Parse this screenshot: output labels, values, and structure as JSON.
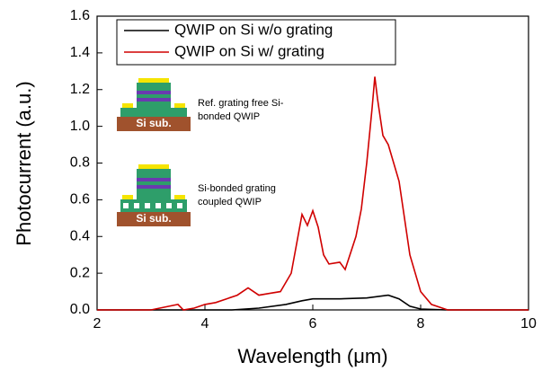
{
  "chart_data": {
    "type": "line",
    "x_label": "Wavelength (μm)",
    "y_label": "Photocurrent (a.u.)",
    "xlim": [
      2,
      10
    ],
    "xticks": [
      2,
      4,
      6,
      8,
      10
    ],
    "ylim": [
      0,
      1.6
    ],
    "yticks": [
      {
        "value": 0,
        "label": "0.0"
      },
      0.2,
      0.4,
      0.6,
      0.8,
      {
        "value": 1,
        "label": "1.0"
      },
      1.2,
      1.4,
      1.6
    ],
    "legend": "upper left",
    "series": [
      {
        "name": "QWIP on Si w/o grating",
        "color": "#000000",
        "x": [
          2,
          4.5,
          5.0,
          5.5,
          5.8,
          6.0,
          6.5,
          7.0,
          7.4,
          7.6,
          7.8,
          8.0,
          8.5,
          10
        ],
        "values": [
          0,
          0,
          0.01,
          0.03,
          0.05,
          0.06,
          0.06,
          0.065,
          0.08,
          0.06,
          0.02,
          0.005,
          0,
          0
        ]
      },
      {
        "name": "QWIP on Si w/ grating",
        "color": "#d00000",
        "x": [
          2,
          3.0,
          3.5,
          3.6,
          3.8,
          4.0,
          4.2,
          4.4,
          4.6,
          4.8,
          5.0,
          5.2,
          5.4,
          5.6,
          5.8,
          5.9,
          6.0,
          6.1,
          6.2,
          6.3,
          6.5,
          6.6,
          6.8,
          6.9,
          7.0,
          7.1,
          7.15,
          7.2,
          7.3,
          7.4,
          7.5,
          7.6,
          7.7,
          7.8,
          8.0,
          8.2,
          8.5,
          10
        ],
        "values": [
          0,
          0,
          0.03,
          0,
          0.01,
          0.03,
          0.04,
          0.06,
          0.08,
          0.12,
          0.08,
          0.09,
          0.1,
          0.2,
          0.52,
          0.46,
          0.54,
          0.45,
          0.3,
          0.25,
          0.26,
          0.22,
          0.4,
          0.55,
          0.8,
          1.1,
          1.27,
          1.15,
          0.95,
          0.9,
          0.8,
          0.7,
          0.5,
          0.3,
          0.1,
          0.03,
          0,
          0
        ]
      }
    ],
    "annotations": [
      "Ref. grating free Si-",
      "bonded QWIP",
      "Si sub.",
      "Si-bonded grating",
      "coupled QWIP",
      "Si sub."
    ]
  }
}
